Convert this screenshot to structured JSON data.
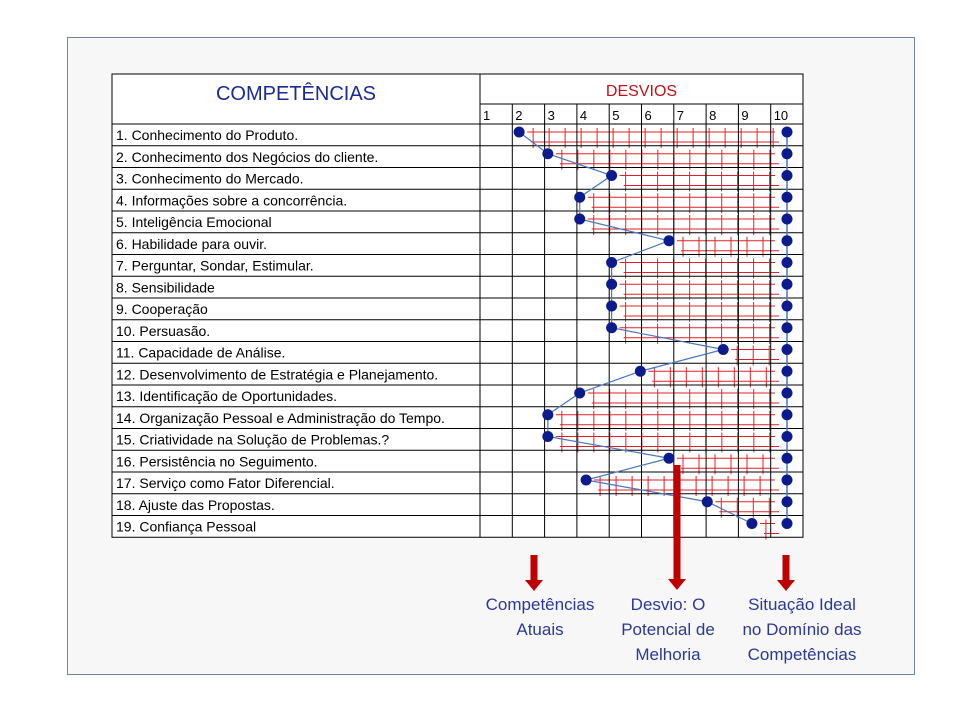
{
  "chart_data": {
    "type": "scatter",
    "title_left": "COMPETÊNCIAS",
    "title_right": "DESVIOS",
    "x_ticks": [
      "1",
      "2",
      "3",
      "4",
      "5",
      "6",
      "7",
      "8",
      "9",
      "10"
    ],
    "xlim": [
      1,
      10
    ],
    "competencies": [
      "1. Conhecimento do Produto.",
      "2. Conhecimento dos Negócios do cliente.",
      "3. Conhecimento do Mercado.",
      "4. Informações sobre a concorrência.",
      "5. Inteligência Emocional",
      "6. Habilidade para ouvir.",
      "7. Perguntar, Sondar, Estimular.",
      "8. Sensibilidade",
      "9. Cooperação",
      "10. Persuasão.",
      "11. Capacidade de Análise.",
      "12. Desenvolvimento de Estratégia e Planejamento.",
      "13. Identificação de Oportunidades.",
      "14. Organização Pessoal e Administração do Tempo.",
      "15. Criatividade na Solução de Problemas.?",
      "16. Persistência no Seguimento.",
      "17. Serviço como Fator Diferencial.",
      "18. Ajuste das Propostas.",
      "19. Confiança Pessoal"
    ],
    "current_values": [
      1.6,
      2.5,
      4.5,
      3.5,
      3.5,
      6.3,
      4.5,
      4.5,
      4.5,
      4.5,
      8.0,
      5.4,
      3.5,
      2.5,
      2.5,
      6.3,
      3.7,
      7.5,
      8.9
    ],
    "ideal_values": [
      10,
      10,
      10,
      10,
      10,
      10,
      10,
      10,
      10,
      10,
      10,
      10,
      10,
      10,
      10,
      10,
      10,
      10,
      10
    ],
    "colors": {
      "grid": "#000000",
      "hatch": "#e0202a",
      "dot": "#0b1a8c",
      "line": "#4a78c2",
      "header_left": "#1a2a99",
      "header_right": "#c0121b",
      "arrow": "#c00000",
      "label": "#2b3a97"
    }
  },
  "annotations": [
    {
      "text": "Competências\nAtuais",
      "arrow": "short"
    },
    {
      "text": "Desvio: O\nPotencial de\nMelhoria",
      "arrow": "long"
    },
    {
      "text": "Situação Ideal\nno Domínio das\nCompetências",
      "arrow": "short"
    }
  ]
}
